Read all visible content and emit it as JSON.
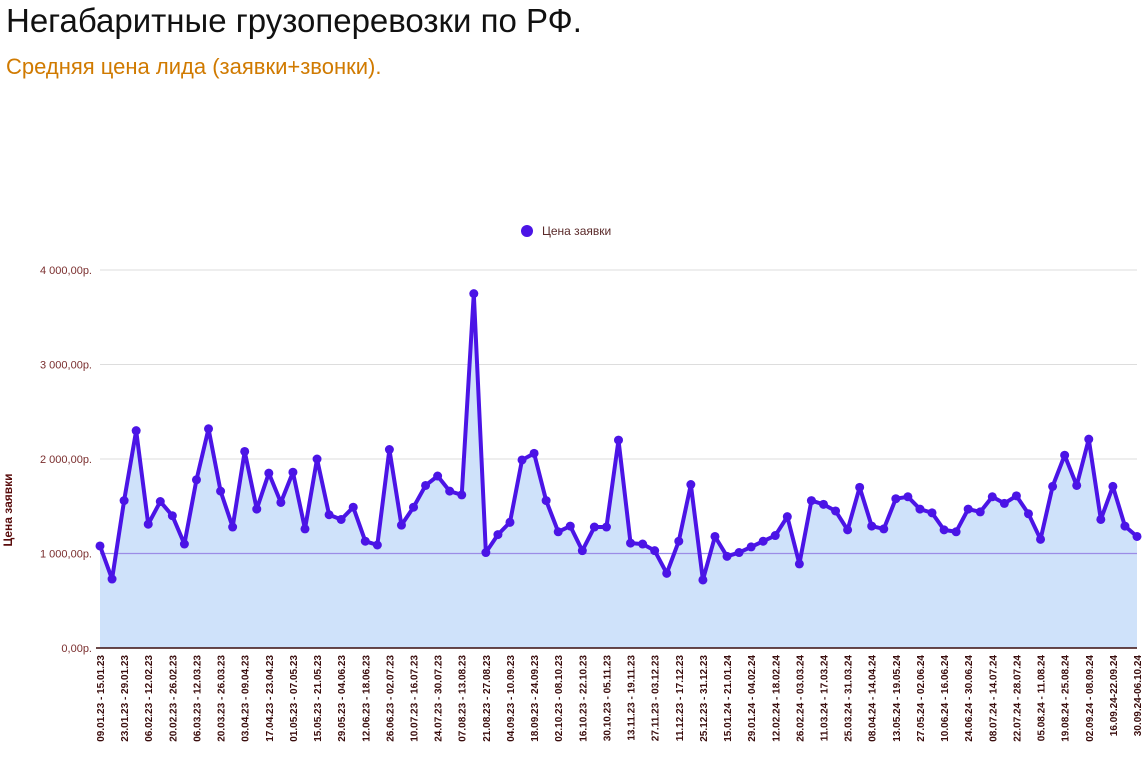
{
  "header": {
    "title": "Негабаритные грузоперевозки по РФ.",
    "subtitle": "Средняя цена лида (заявки+звонки)."
  },
  "colors": {
    "line": "#4b14e6",
    "area": "#cfe2fa",
    "grid": "#dddddd",
    "reference_line": "#9c8ce6",
    "axis": "#3a0d0d",
    "title": "#111111",
    "subtitle": "#d07a00"
  },
  "chart_data": {
    "type": "area",
    "ylabel": "Цена заявки",
    "xlabel": "",
    "ylim": [
      0,
      4000
    ],
    "yticks": [
      0,
      1000,
      2000,
      3000,
      4000
    ],
    "ytick_labels": [
      "0,00р.",
      "1 000,00р.",
      "2 000,00р.",
      "3 000,00р.",
      "4 000,00р."
    ],
    "grid": true,
    "legend": "top",
    "reference_line": 1000,
    "x_labels": [
      "09.01.23 - 15.01.23",
      "23.01.23 - 29.01.23",
      "06.02.23 - 12.02.23",
      "20.02.23 - 26.02.23",
      "06.03.23 - 12.03.23",
      "20.03.23 - 26.03.23",
      "03.04.23 - 09.04.23",
      "17.04.23 - 23.04.23",
      "01.05.23 - 07.05.23",
      "15.05.23 - 21.05.23",
      "29.05.23 - 04.06.23",
      "12.06.23 - 18.06.23",
      "26.06.23 - 02.07.23",
      "10.07.23 - 16.07.23",
      "24.07.23 - 30.07.23",
      "07.08.23 - 13.08.23",
      "21.08.23 - 27.08.23",
      "04.09.23 - 10.09.23",
      "18.09.23 - 24.09.23",
      "02.10.23 - 08.10.23",
      "16.10.23 - 22.10.23",
      "30.10.23 - 05.11.23",
      "13.11.23 - 19.11.23",
      "27.11.23 - 03.12.23",
      "11.12.23 - 17.12.23",
      "25.12.23 - 31.12.23",
      "15.01.24 - 21.01.24",
      "29.01.24 - 04.02.24",
      "12.02.24 - 18.02.24",
      "26.02.24 - 03.03.24",
      "11.03.24 - 17.03.24",
      "25.03.24 - 31.03.24",
      "08.04.24 - 14.04.24",
      "13.05.24 - 19.05.24",
      "27.05.24 - 02.06.24",
      "10.06.24 - 16.06.24",
      "24.06.24 - 30.06.24",
      "08.07.24 - 14.07.24",
      "22.07.24 - 28.07.24",
      "05.08.24 - 11.08.24",
      "19.08.24 - 25.08.24",
      "02.09.24 - 08.09.24",
      "16.09.24-22.09.24",
      "30.09.24-06.10.24"
    ],
    "series": [
      {
        "name": "Цена заявки",
        "values": [
          1080,
          730,
          1560,
          2300,
          1310,
          1550,
          1400,
          1100,
          1780,
          2320,
          1660,
          1280,
          2080,
          1470,
          1850,
          1540,
          1860,
          1260,
          2000,
          1410,
          1360,
          1490,
          1130,
          1090,
          2100,
          1300,
          1490,
          1720,
          1820,
          1660,
          1620,
          3750,
          1010,
          1200,
          1330,
          1990,
          2060,
          1560,
          1230,
          1290,
          1030,
          1280,
          1280,
          2200,
          1110,
          1100,
          1030,
          790,
          1130,
          1730,
          720,
          1180,
          970,
          1010,
          1070,
          1130,
          1190,
          1390,
          890,
          1560,
          1520,
          1450,
          1250,
          1700,
          1290,
          1260,
          1580,
          1600,
          1470,
          1430,
          1250,
          1230,
          1470,
          1440,
          1600,
          1530,
          1610,
          1420,
          1150,
          1710,
          2040,
          1720,
          2210,
          1360,
          1710,
          1290,
          1180
        ]
      }
    ]
  }
}
